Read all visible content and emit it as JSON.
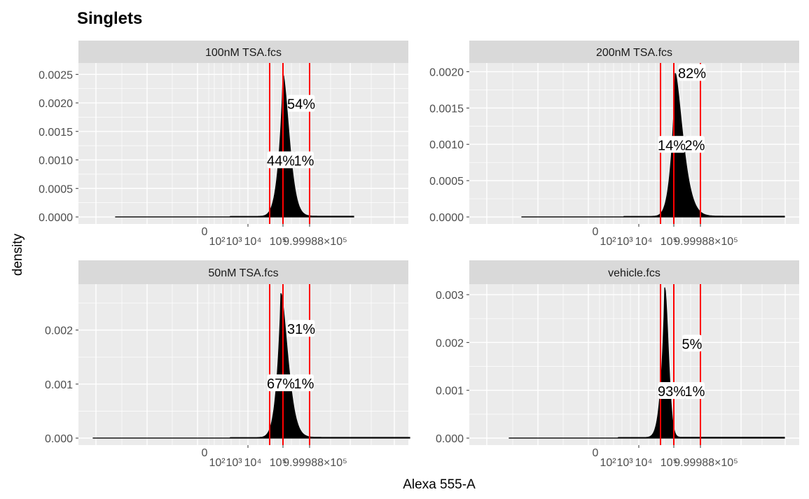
{
  "chart_data": {
    "type": "area",
    "title": "Singlets",
    "xlabel": "Alexa 555-A",
    "ylabel": "density",
    "x_tick_labels": [
      "0",
      "10²",
      "10³",
      "10⁴",
      "10⁵",
      "9.99988×10⁵"
    ],
    "grid": true,
    "legend": "none",
    "colors": {
      "panel_bg": "#ebebeb",
      "strip_bg": "#d9d9d9",
      "grid": "#ffffff",
      "gate_line": "#ff0000",
      "fill": "#000000"
    },
    "panels": [
      {
        "strip": "100nM TSA.fcs",
        "ylim": [
          0,
          0.0027
        ],
        "y_ticks": [
          0,
          0.0005,
          0.001,
          0.0015,
          0.002,
          0.0025
        ],
        "y_tick_labels": [
          "0.0000",
          "0.0005",
          "0.0010",
          "0.0015",
          "0.0020",
          "0.0025"
        ],
        "peak": 0.0025,
        "gates": [
          "gate_low",
          "gate_mid",
          "gate_high"
        ],
        "labels": [
          {
            "text": "54%",
            "x": "gate_mid",
            "y": 0.00198
          },
          {
            "text": "44%",
            "x": "gate_low",
            "y": 0.00099
          },
          {
            "text": "1%",
            "x": "gate_mid",
            "y": 0.00099
          }
        ]
      },
      {
        "strip": "200nM TSA.fcs",
        "ylim": [
          0,
          0.00212
        ],
        "y_ticks": [
          0,
          0.0005,
          0.001,
          0.0015,
          0.002
        ],
        "y_tick_labels": [
          "0.0000",
          "0.0005",
          "0.0010",
          "0.0015",
          "0.0020"
        ],
        "peak": 0.00198,
        "gates": [
          "gate_low",
          "gate_mid",
          "gate_high"
        ],
        "labels": [
          {
            "text": "82%",
            "x": "gate_mid",
            "y": 0.00198
          },
          {
            "text": "14%",
            "x": "gate_low",
            "y": 0.00099
          },
          {
            "text": "2%",
            "x": "gate_mid",
            "y": 0.00099
          }
        ]
      },
      {
        "strip": "50nM TSA.fcs",
        "ylim": [
          0,
          0.00285
        ],
        "y_ticks": [
          0,
          0.001,
          0.002
        ],
        "y_tick_labels": [
          "0.000",
          "0.001",
          "0.002"
        ],
        "peak": 0.00268,
        "gates": [
          "gate_low",
          "gate_mid",
          "gate_high"
        ],
        "labels": [
          {
            "text": "31%",
            "x": "gate_mid",
            "y": 0.00202
          },
          {
            "text": "67%",
            "x": "gate_low",
            "y": 0.00101
          },
          {
            "text": "1%",
            "x": "gate_mid",
            "y": 0.00101
          }
        ]
      },
      {
        "strip": "vehicle.fcs",
        "ylim": [
          0,
          0.00322
        ],
        "y_ticks": [
          0,
          0.001,
          0.002,
          0.003
        ],
        "y_tick_labels": [
          "0.000",
          "0.001",
          "0.002",
          "0.003"
        ],
        "peak": 0.00315,
        "gates": [
          "gate_low",
          "gate_mid",
          "gate_high"
        ],
        "labels": [
          {
            "text": "5%",
            "x": "gate_mid",
            "y": 0.00197
          },
          {
            "text": "93%",
            "x": "gate_low",
            "y": 0.00098
          },
          {
            "text": "1%",
            "x": "gate_mid",
            "y": 0.00098
          }
        ]
      }
    ]
  }
}
